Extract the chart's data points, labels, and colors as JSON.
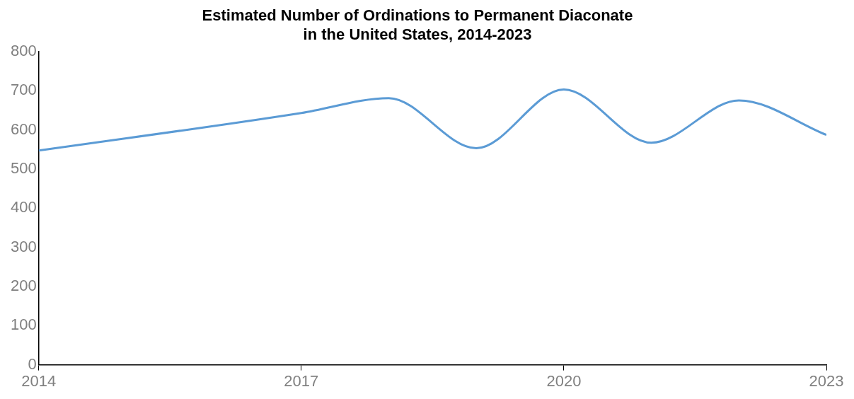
{
  "chart_data": {
    "type": "line",
    "title": "Estimated Number of Ordinations to Permanent Diaconate\nin the United States, 2014-2023",
    "x": [
      2014,
      2017,
      2018,
      2019,
      2020,
      2021,
      2022,
      2023
    ],
    "series": [
      {
        "color": "#5b9bd5",
        "values": [
          547,
          643,
          681,
          553,
          703,
          567,
          675,
          587
        ]
      }
    ],
    "xlim": [
      2014,
      2023
    ],
    "xticks": [
      2014,
      2017,
      2020,
      2023
    ],
    "ylim": [
      0,
      800
    ],
    "yticks": [
      0,
      100,
      200,
      300,
      400,
      500,
      600,
      700,
      800
    ],
    "grid": false,
    "legend": false,
    "marker": "none",
    "line_style": "solid"
  }
}
